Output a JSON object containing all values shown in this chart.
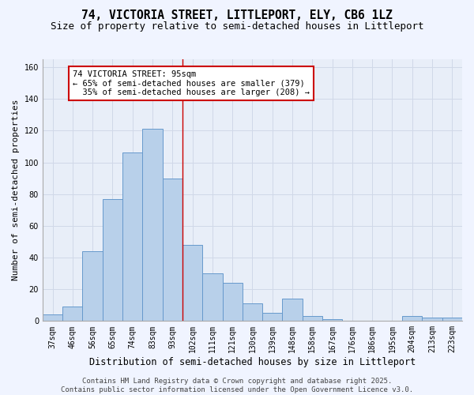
{
  "title": "74, VICTORIA STREET, LITTLEPORT, ELY, CB6 1LZ",
  "subtitle": "Size of property relative to semi-detached houses in Littleport",
  "xlabel": "Distribution of semi-detached houses by size in Littleport",
  "ylabel": "Number of semi-detached properties",
  "categories": [
    "37sqm",
    "46sqm",
    "56sqm",
    "65sqm",
    "74sqm",
    "83sqm",
    "93sqm",
    "102sqm",
    "111sqm",
    "121sqm",
    "130sqm",
    "139sqm",
    "148sqm",
    "158sqm",
    "167sqm",
    "176sqm",
    "186sqm",
    "195sqm",
    "204sqm",
    "213sqm",
    "223sqm"
  ],
  "values": [
    4,
    9,
    44,
    77,
    106,
    121,
    90,
    48,
    30,
    24,
    11,
    5,
    14,
    3,
    1,
    0,
    0,
    0,
    3,
    2,
    2
  ],
  "bar_color": "#b8d0ea",
  "bar_edge_color": "#6699cc",
  "vline_x_index": 6,
  "vline_color": "#cc0000",
  "annotation_text": "74 VICTORIA STREET: 95sqm\n← 65% of semi-detached houses are smaller (379)\n  35% of semi-detached houses are larger (208) →",
  "annotation_box_color": "#ffffff",
  "annotation_box_edge_color": "#cc0000",
  "ylim": [
    0,
    165
  ],
  "yticks": [
    0,
    20,
    40,
    60,
    80,
    100,
    120,
    140,
    160
  ],
  "grid_color": "#d0d8e8",
  "bg_color": "#e8eef8",
  "fig_bg_color": "#f0f4ff",
  "footer_text": "Contains HM Land Registry data © Crown copyright and database right 2025.\nContains public sector information licensed under the Open Government Licence v3.0.",
  "title_fontsize": 10.5,
  "subtitle_fontsize": 9,
  "xlabel_fontsize": 8.5,
  "ylabel_fontsize": 8,
  "tick_fontsize": 7,
  "annotation_fontsize": 7.5,
  "footer_fontsize": 6.5
}
